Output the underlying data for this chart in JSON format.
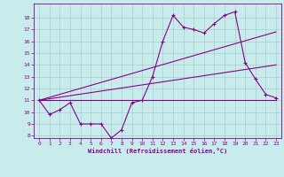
{
  "background_color": "#c8ecec",
  "line_color": "#880088",
  "grid_color": "#a0c8c8",
  "xlim": [
    -0.5,
    23.5
  ],
  "ylim": [
    7.8,
    19.2
  ],
  "xticks": [
    0,
    1,
    2,
    3,
    4,
    5,
    6,
    7,
    8,
    9,
    10,
    11,
    12,
    13,
    14,
    15,
    16,
    17,
    18,
    19,
    20,
    21,
    22,
    23
  ],
  "yticks": [
    8,
    9,
    10,
    11,
    12,
    13,
    14,
    15,
    16,
    17,
    18
  ],
  "xlabel": "Windchill (Refroidissement éolien,°C)",
  "line1_x": [
    0,
    1,
    2,
    3,
    4,
    5,
    6,
    7,
    8,
    9,
    10,
    11,
    12,
    13,
    14,
    15,
    16,
    17,
    18,
    19,
    20,
    21,
    22,
    23
  ],
  "line1_y": [
    11,
    9.8,
    10.2,
    10.8,
    9.0,
    9.0,
    9.0,
    7.8,
    8.5,
    10.8,
    11.0,
    13.0,
    16.0,
    18.2,
    17.2,
    17.0,
    16.7,
    17.5,
    18.2,
    18.5,
    14.2,
    12.8,
    11.5,
    11.2
  ],
  "line2_x": [
    0,
    23
  ],
  "line2_y": [
    11,
    11
  ],
  "line3_x": [
    0,
    23
  ],
  "line3_y": [
    11,
    16.8
  ],
  "line4_x": [
    0,
    23
  ],
  "line4_y": [
    11,
    14.0
  ],
  "figwidth": 3.2,
  "figheight": 2.0,
  "dpi": 100
}
